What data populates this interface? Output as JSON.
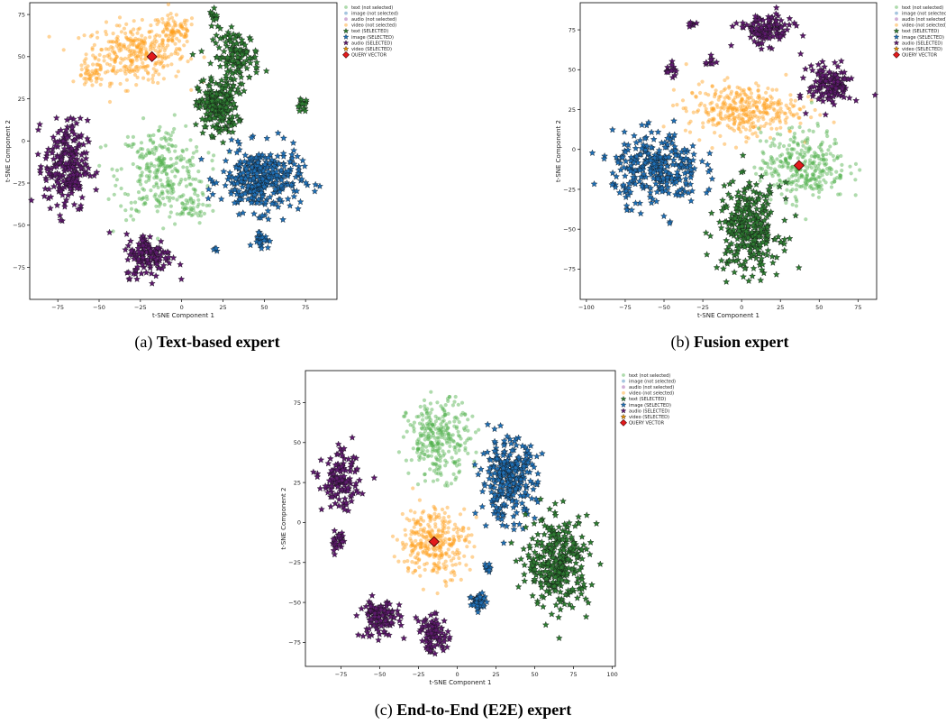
{
  "legend_entries": [
    {
      "label": "text (not selected)",
      "color": "#4daf4a",
      "marker": "circle",
      "selected": false
    },
    {
      "label": "image (not selected)",
      "color": "#377eb8",
      "marker": "circle",
      "selected": false
    },
    {
      "label": "audio (not selected)",
      "color": "#984ea3",
      "marker": "circle",
      "selected": false
    },
    {
      "label": "video (not selected)",
      "color": "#ff9f1c",
      "marker": "circle",
      "selected": false
    },
    {
      "label": "text (SELECTED)",
      "color": "#2e7d32",
      "marker": "star",
      "selected": true
    },
    {
      "label": "image (SELECTED)",
      "color": "#1f6fb5",
      "marker": "star",
      "selected": true
    },
    {
      "label": "audio (SELECTED)",
      "color": "#5e1a6e",
      "marker": "star",
      "selected": true
    },
    {
      "label": "video (SELECTED)",
      "color": "#e58e00",
      "marker": "star",
      "selected": true
    },
    {
      "label": "QUERY VECTOR",
      "color": "#e31a1c",
      "marker": "diamond",
      "selected": true
    }
  ],
  "chart_data": [
    {
      "type": "scatter",
      "caption_prefix": "(a) ",
      "caption_bold": "Text-based expert",
      "xlabel": "t-SNE Component 1",
      "ylabel": "t-SNE Component 2",
      "xlim": [
        -92,
        94
      ],
      "ylim": [
        -94,
        82
      ],
      "xticks": [
        -75,
        -50,
        -25,
        0,
        25,
        50,
        75
      ],
      "yticks": [
        -75,
        -50,
        -25,
        0,
        25,
        50,
        75
      ],
      "clusters": [
        {
          "group": "video",
          "selected": false,
          "cx": -28,
          "cy": 52,
          "rx": 30,
          "ry": 17,
          "n": 320
        },
        {
          "group": "video",
          "selected": false,
          "cx": -5,
          "cy": 65,
          "rx": 14,
          "ry": 10,
          "n": 80
        },
        {
          "group": "video",
          "selected": false,
          "cx": -55,
          "cy": 38,
          "rx": 8,
          "ry": 6,
          "n": 40
        },
        {
          "group": "text",
          "selected": false,
          "cx": -12,
          "cy": -18,
          "rx": 26,
          "ry": 28,
          "n": 300
        },
        {
          "group": "text",
          "selected": false,
          "cx": 5,
          "cy": -40,
          "rx": 10,
          "ry": 9,
          "n": 40
        },
        {
          "group": "text",
          "selected": true,
          "cx": 22,
          "cy": 20,
          "rx": 12,
          "ry": 16,
          "n": 200
        },
        {
          "group": "text",
          "selected": true,
          "cx": 33,
          "cy": 50,
          "rx": 14,
          "ry": 16,
          "n": 130
        },
        {
          "group": "text",
          "selected": true,
          "cx": 73,
          "cy": 21,
          "rx": 4,
          "ry": 4,
          "n": 15
        },
        {
          "group": "text",
          "selected": true,
          "cx": 20,
          "cy": 74,
          "rx": 3,
          "ry": 4,
          "n": 12
        },
        {
          "group": "image",
          "selected": true,
          "cx": 48,
          "cy": -23,
          "rx": 24,
          "ry": 19,
          "n": 320
        },
        {
          "group": "image",
          "selected": true,
          "cx": 48,
          "cy": -58,
          "rx": 5,
          "ry": 5,
          "n": 25
        },
        {
          "group": "image",
          "selected": true,
          "cx": 20,
          "cy": -65,
          "rx": 2,
          "ry": 2,
          "n": 4
        },
        {
          "group": "audio",
          "selected": true,
          "cx": -70,
          "cy": -15,
          "rx": 13,
          "ry": 27,
          "n": 240
        },
        {
          "group": "audio",
          "selected": true,
          "cx": -20,
          "cy": -68,
          "rx": 14,
          "ry": 13,
          "n": 130
        }
      ],
      "query": {
        "x": -18,
        "y": 50
      }
    },
    {
      "type": "scatter",
      "caption_prefix": "(b) ",
      "caption_bold": "Fusion expert",
      "xlabel": "t-SNE Component 1",
      "ylabel": "t-SNE Component 2",
      "xlim": [
        -104,
        87
      ],
      "ylim": [
        -94,
        92
      ],
      "xticks": [
        -100,
        -75,
        -50,
        -25,
        0,
        25,
        50,
        75
      ],
      "yticks": [
        -75,
        -50,
        -25,
        0,
        25,
        50,
        75
      ],
      "clusters": [
        {
          "group": "video",
          "selected": false,
          "cx": 0,
          "cy": 25,
          "rx": 36,
          "ry": 16,
          "n": 360
        },
        {
          "group": "text",
          "selected": false,
          "cx": 40,
          "cy": -10,
          "rx": 28,
          "ry": 22,
          "n": 320
        },
        {
          "group": "image",
          "selected": true,
          "cx": -55,
          "cy": -12,
          "rx": 28,
          "ry": 22,
          "n": 300
        },
        {
          "group": "text",
          "selected": true,
          "cx": 5,
          "cy": -50,
          "rx": 20,
          "ry": 28,
          "n": 300
        },
        {
          "group": "audio",
          "selected": true,
          "cx": 15,
          "cy": 75,
          "rx": 18,
          "ry": 10,
          "n": 120
        },
        {
          "group": "audio",
          "selected": true,
          "cx": 57,
          "cy": 40,
          "rx": 14,
          "ry": 13,
          "n": 130
        },
        {
          "group": "audio",
          "selected": true,
          "cx": -45,
          "cy": 50,
          "rx": 4,
          "ry": 4,
          "n": 15
        },
        {
          "group": "audio",
          "selected": true,
          "cx": -32,
          "cy": 78,
          "rx": 3,
          "ry": 3,
          "n": 10
        },
        {
          "group": "audio",
          "selected": true,
          "cx": -20,
          "cy": 55,
          "rx": 3,
          "ry": 3,
          "n": 10
        }
      ],
      "query": {
        "x": 37,
        "y": -10
      }
    },
    {
      "type": "scatter",
      "caption_prefix": "(c) ",
      "caption_bold": "End-to-End (E2E) expert",
      "xlabel": "t-SNE Component 1",
      "ylabel": "t-SNE Component 2",
      "xlim": [
        -98,
        102
      ],
      "ylim": [
        -90,
        95
      ],
      "xticks": [
        -75,
        -50,
        -25,
        0,
        25,
        50,
        75,
        100
      ],
      "yticks": [
        -75,
        -50,
        -25,
        0,
        25,
        50,
        75
      ],
      "clusters": [
        {
          "group": "text",
          "selected": false,
          "cx": -12,
          "cy": 52,
          "rx": 20,
          "ry": 24,
          "n": 300
        },
        {
          "group": "video",
          "selected": false,
          "cx": -15,
          "cy": -12,
          "rx": 22,
          "ry": 22,
          "n": 320
        },
        {
          "group": "image",
          "selected": true,
          "cx": 33,
          "cy": 27,
          "rx": 18,
          "ry": 24,
          "n": 280
        },
        {
          "group": "image",
          "selected": true,
          "cx": 14,
          "cy": -50,
          "rx": 6,
          "ry": 7,
          "n": 40
        },
        {
          "group": "image",
          "selected": true,
          "cx": 20,
          "cy": -28,
          "rx": 3,
          "ry": 3,
          "n": 10
        },
        {
          "group": "text",
          "selected": true,
          "cx": 65,
          "cy": -25,
          "rx": 20,
          "ry": 28,
          "n": 320
        },
        {
          "group": "audio",
          "selected": true,
          "cx": -75,
          "cy": 25,
          "rx": 12,
          "ry": 17,
          "n": 130
        },
        {
          "group": "audio",
          "selected": true,
          "cx": -77,
          "cy": -12,
          "rx": 5,
          "ry": 8,
          "n": 30
        },
        {
          "group": "audio",
          "selected": true,
          "cx": -50,
          "cy": -60,
          "rx": 13,
          "ry": 12,
          "n": 110
        },
        {
          "group": "audio",
          "selected": true,
          "cx": -15,
          "cy": -70,
          "rx": 9,
          "ry": 11,
          "n": 90
        }
      ],
      "query": {
        "x": -15,
        "y": -12
      }
    }
  ]
}
